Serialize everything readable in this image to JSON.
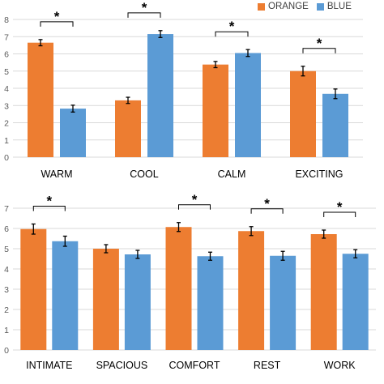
{
  "legend": {
    "orange_label": "ORANGE",
    "blue_label": "BLUE"
  },
  "colors": {
    "orange": "#ED7D31",
    "blue": "#5B9BD5",
    "grid": "#D9D9D9",
    "axis_text": "#595959",
    "category_text": "#000000",
    "significance": "#000000"
  },
  "chart_data": [
    {
      "type": "bar",
      "categories": [
        "WARM",
        "COOL",
        "CALM",
        "EXCITING"
      ],
      "series": [
        {
          "name": "ORANGE",
          "values": [
            6.65,
            3.3,
            5.38,
            5.0
          ],
          "errors": [
            0.18,
            0.18,
            0.18,
            0.28
          ]
        },
        {
          "name": "BLUE",
          "values": [
            2.82,
            7.15,
            6.05,
            3.68
          ],
          "errors": [
            0.2,
            0.2,
            0.2,
            0.28
          ]
        }
      ],
      "significance": [
        {
          "category": "WARM",
          "label": "*"
        },
        {
          "category": "COOL",
          "label": "*"
        },
        {
          "category": "CALM",
          "label": "*"
        },
        {
          "category": "EXCITING",
          "label": "*"
        }
      ],
      "ylim": [
        0,
        8
      ],
      "yticks": [
        0,
        1,
        2,
        3,
        4,
        5,
        6,
        7,
        8
      ],
      "grid": true,
      "legend_position": "top-right"
    },
    {
      "type": "bar",
      "categories": [
        "INTIMATE",
        "SPACIOUS",
        "COMFORT",
        "REST",
        "WORK"
      ],
      "series": [
        {
          "name": "ORANGE",
          "values": [
            5.97,
            5.0,
            6.07,
            5.87,
            5.72
          ],
          "errors": [
            0.25,
            0.2,
            0.22,
            0.22,
            0.2
          ]
        },
        {
          "name": "BLUE",
          "values": [
            5.37,
            4.72,
            4.63,
            4.65,
            4.75
          ],
          "errors": [
            0.25,
            0.2,
            0.2,
            0.22,
            0.2
          ]
        }
      ],
      "significance": [
        {
          "category": "INTIMATE",
          "label": "*"
        },
        {
          "category": "COMFORT",
          "label": "*"
        },
        {
          "category": "REST",
          "label": "*"
        },
        {
          "category": "WORK",
          "label": "*"
        }
      ],
      "ylim": [
        0,
        7
      ],
      "yticks": [
        0,
        1,
        2,
        3,
        4,
        5,
        6,
        7
      ],
      "grid": true,
      "legend_position": "none"
    }
  ]
}
